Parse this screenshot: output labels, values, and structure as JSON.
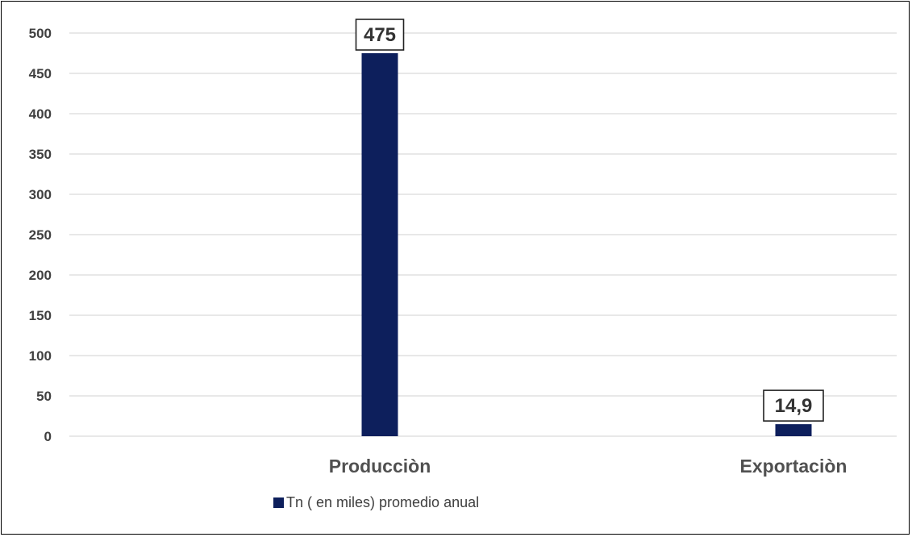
{
  "chart_data": {
    "type": "bar",
    "categories": [
      "Producciòn",
      "Exportaciòn"
    ],
    "series": [
      {
        "name": "Tn ( en miles) promedio anual",
        "values": [
          475,
          14.9
        ],
        "data_labels": [
          "475",
          "14,9"
        ],
        "color": "#0d1f5c"
      }
    ],
    "ylim": [
      0,
      500
    ],
    "yticks": [
      0,
      50,
      100,
      150,
      200,
      250,
      300,
      350,
      400,
      450,
      500
    ],
    "grid": true,
    "legend_position": "bottom",
    "title": "",
    "xlabel": "",
    "ylabel": ""
  }
}
